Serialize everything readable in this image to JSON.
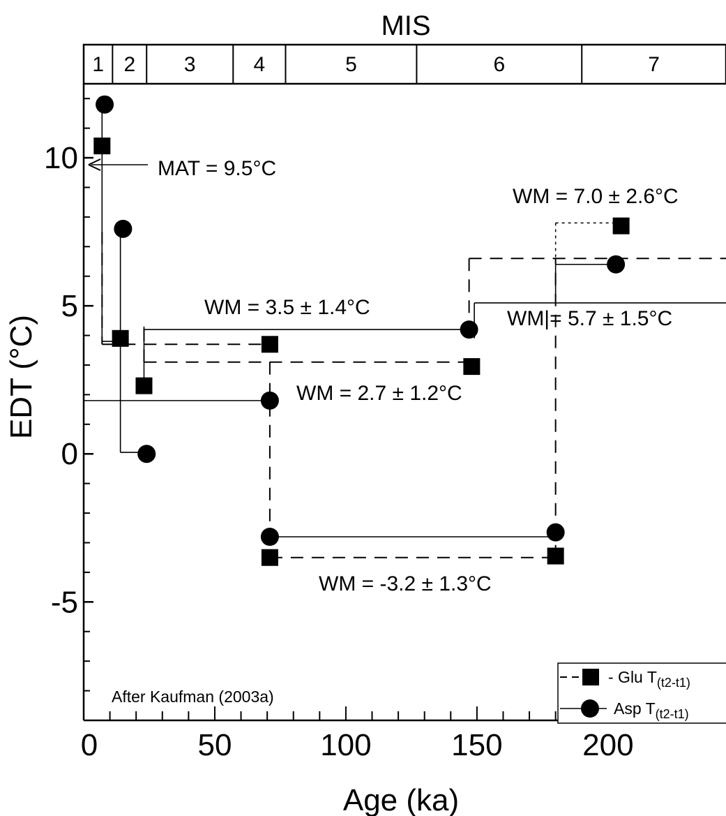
{
  "chart_data": {
    "type": "scatter",
    "title": "",
    "xlabel": "Age (ka)",
    "ylabel": "EDT (°C)",
    "xlim": [
      0,
      245
    ],
    "ylim": [
      -9,
      12.5
    ],
    "xticks": [
      0,
      50,
      100,
      150,
      200
    ],
    "yticks": [
      -5,
      0,
      5,
      10
    ],
    "xtick_labels": [
      "0",
      "50",
      "100",
      "150",
      "200"
    ],
    "ytick_labels": [
      "-5",
      "0",
      "5",
      "10"
    ],
    "mis": {
      "title": "MIS",
      "stages": [
        {
          "label": "1",
          "start": 0,
          "end": 11
        },
        {
          "label": "2",
          "start": 11,
          "end": 24
        },
        {
          "label": "3",
          "start": 24,
          "end": 57
        },
        {
          "label": "4",
          "start": 57,
          "end": 77
        },
        {
          "label": "5",
          "start": 77,
          "end": 127
        },
        {
          "label": "6",
          "start": 127,
          "end": 190
        },
        {
          "label": "7",
          "start": 190,
          "end": 245
        }
      ]
    },
    "series": [
      {
        "name": "Glu",
        "marker": "square",
        "points": [
          {
            "x": 7,
            "y": 10.4
          },
          {
            "x": 14,
            "y": 3.9
          },
          {
            "x": 23,
            "y": 2.3
          },
          {
            "x": 71,
            "y": 3.7
          },
          {
            "x": 148,
            "y": 2.95
          },
          {
            "x": 71,
            "y": -3.5
          },
          {
            "x": 180,
            "y": -3.45
          },
          {
            "x": 205,
            "y": 7.7
          }
        ]
      },
      {
        "name": "Asp",
        "marker": "circle",
        "points": [
          {
            "x": 8,
            "y": 11.8
          },
          {
            "x": 15,
            "y": 7.6
          },
          {
            "x": 24,
            "y": 0.0
          },
          {
            "x": 71,
            "y": 1.8
          },
          {
            "x": 147,
            "y": 4.2
          },
          {
            "x": 71,
            "y": -2.8
          },
          {
            "x": 180,
            "y": -2.65
          },
          {
            "x": 203,
            "y": 6.4
          }
        ]
      }
    ],
    "step_lines": {
      "glu_dashed": [
        {
          "from": [
            7,
            7.5
          ],
          "to": [
            7,
            3.7
          ]
        },
        {
          "from": [
            7,
            3.7
          ],
          "to": [
            71,
            3.7
          ]
        },
        {
          "from": [
            23,
            3.1
          ],
          "to": [
            148,
            3.1
          ]
        },
        {
          "from": [
            23,
            3.1
          ],
          "to": [
            23,
            4.3
          ]
        },
        {
          "from": [
            71,
            3.1
          ],
          "to": [
            71,
            -3.5
          ]
        },
        {
          "from": [
            71,
            -3.5
          ],
          "to": [
            180,
            -3.5
          ]
        },
        {
          "from": [
            180,
            -3.5
          ],
          "to": [
            180,
            6.6
          ]
        },
        {
          "from": [
            147,
            6.6
          ],
          "to": [
            245,
            6.6
          ]
        },
        {
          "from": [
            147,
            6.6
          ],
          "to": [
            147,
            4.5
          ]
        }
      ],
      "glu_dotted": [
        {
          "from": [
            180,
            7.8
          ],
          "to": [
            205,
            7.8
          ]
        },
        {
          "from": [
            180,
            7.8
          ],
          "to": [
            180,
            6.6
          ]
        }
      ],
      "asp_solid": [
        {
          "from": [
            7,
            11.8
          ],
          "to": [
            7,
            3.8
          ]
        },
        {
          "from": [
            7,
            3.8
          ],
          "to": [
            14,
            3.8
          ]
        },
        {
          "from": [
            14,
            7.6
          ],
          "to": [
            14,
            0.05
          ]
        },
        {
          "from": [
            14,
            0.05
          ],
          "to": [
            24,
            0.05
          ]
        },
        {
          "from": [
            23,
            2.3
          ],
          "to": [
            23,
            4.3
          ]
        },
        {
          "from": [
            23,
            4.2
          ],
          "to": [
            147,
            4.2
          ]
        },
        {
          "from": [
            0,
            1.8
          ],
          "to": [
            71,
            1.8
          ]
        },
        {
          "from": [
            71,
            -2.8
          ],
          "to": [
            180,
            -2.8
          ]
        },
        {
          "from": [
            149,
            5.1
          ],
          "to": [
            245,
            5.1
          ]
        },
        {
          "from": [
            149,
            5.1
          ],
          "to": [
            149,
            3.9
          ]
        },
        {
          "from": [
            180,
            6.4
          ],
          "to": [
            203,
            6.4
          ]
        },
        {
          "from": [
            180,
            6.4
          ],
          "to": [
            180,
            5.1
          ]
        }
      ]
    },
    "annotations": [
      {
        "id": "mat",
        "text": "MAT = 9.5°C"
      },
      {
        "id": "wm_top",
        "text": "WM = 7.0 ± 2.6°C"
      },
      {
        "id": "wm_35",
        "text": "WM = 3.5 ± 1.4°C"
      },
      {
        "id": "wm_57",
        "text": "WM|= 5.7 ± 1.5°C"
      },
      {
        "id": "wm_27",
        "text": "WM = 2.7 ± 1.2°C"
      },
      {
        "id": "wm_neg",
        "text": "WM = -3.2 ± 1.3°C"
      }
    ],
    "credit": "After Kaufman (2003a)",
    "legend": {
      "placement": "bottom-right",
      "entries": [
        {
          "marker": "square",
          "text": "- Glu T",
          "sub": "(t2-t1)"
        },
        {
          "marker": "circle",
          "text": "Asp T",
          "sub": "(t2-t1)"
        }
      ]
    }
  }
}
